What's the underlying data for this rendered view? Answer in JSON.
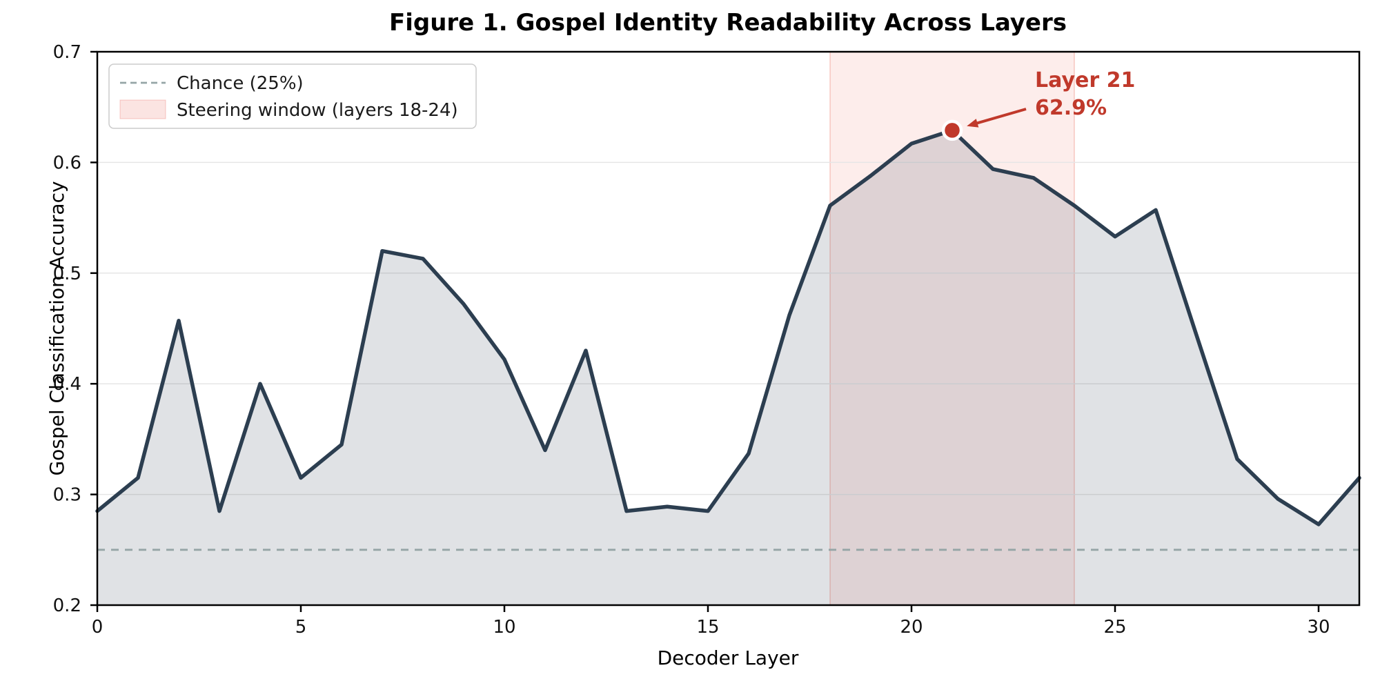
{
  "figure": {
    "title": "Figure 1. Gospel Identity Readability Across Layers",
    "xlabel": "Decoder Layer",
    "ylabel": "Gospel Classification Accuracy"
  },
  "chart_data": {
    "type": "line",
    "title": "Figure 1. Gospel Identity Readability Across Layers",
    "xlabel": "Decoder Layer",
    "ylabel": "Gospel Classification Accuracy",
    "x": [
      0,
      1,
      2,
      3,
      4,
      5,
      6,
      7,
      8,
      9,
      10,
      11,
      12,
      13,
      14,
      15,
      16,
      17,
      18,
      19,
      20,
      21,
      22,
      23,
      24,
      25,
      26,
      27,
      28,
      29,
      30,
      31
    ],
    "series": [
      {
        "name": "Gospel classification accuracy",
        "values": [
          0.285,
          0.315,
          0.457,
          0.285,
          0.4,
          0.315,
          0.345,
          0.52,
          0.513,
          0.472,
          0.422,
          0.34,
          0.43,
          0.285,
          0.289,
          0.285,
          0.337,
          0.462,
          0.561,
          0.588,
          0.617,
          0.629,
          0.594,
          0.586,
          0.561,
          0.533,
          0.557,
          0.444,
          0.332,
          0.296,
          0.273,
          0.315
        ]
      }
    ],
    "chance_level": 0.25,
    "steering_window": [
      18,
      24
    ],
    "annotation": {
      "line1": "Layer 21",
      "line2": "62.9%",
      "x": 21,
      "y": 0.629
    },
    "legend": [
      {
        "label": "Chance (25%)",
        "swatch": "dashed-line"
      },
      {
        "label": "Steering window (layers 18-24)",
        "swatch": "patch"
      }
    ],
    "xlim": [
      0,
      31
    ],
    "ylim": [
      0.2,
      0.7
    ],
    "xticks": [
      0,
      5,
      10,
      15,
      20,
      25,
      30
    ],
    "yticks": [
      0.2,
      0.3,
      0.4,
      0.5,
      0.6,
      0.7
    ],
    "grid": "horizontal-only",
    "legend_position": "upper-left",
    "colors": {
      "line": "#2c3e50",
      "area": "rgba(44,62,80,0.15)",
      "chance": "#95a5a6",
      "window_fill": "rgba(231,76,60,0.10)",
      "window_edge": "rgba(231,76,60,0.28)",
      "accent": "#c0392b",
      "grid": "#e6e6e6",
      "legend_patch": "rgba(231,76,60,0.15)",
      "spine": "#000000"
    }
  }
}
